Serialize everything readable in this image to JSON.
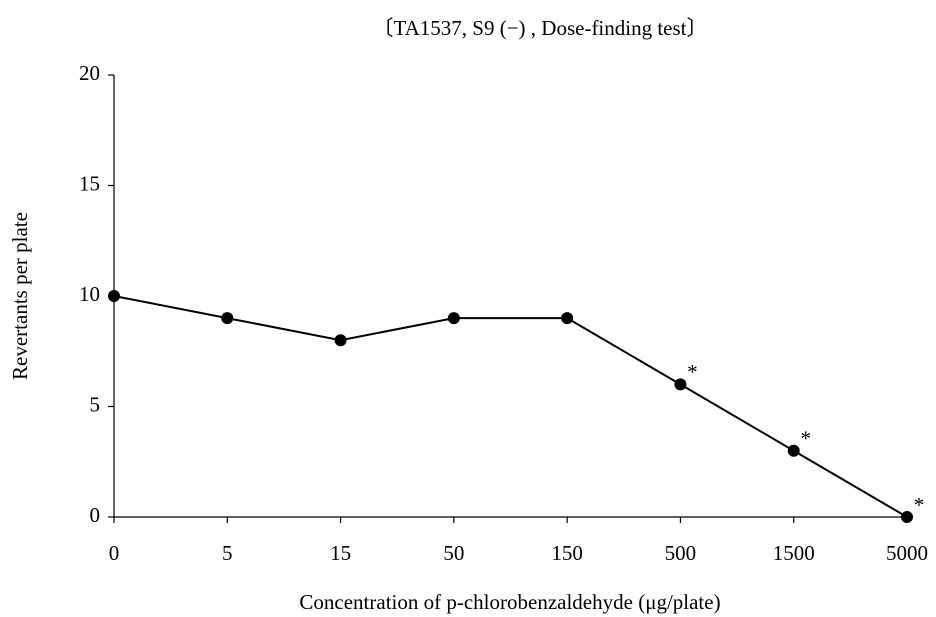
{
  "chart_data": {
    "type": "line",
    "title": "〔TA1537, S9 (−) , Dose-finding test〕",
    "x_label": "Concentration of p-chlorobenzaldehyde (μg/plate)",
    "y_label": "Revertants per plate",
    "categories": [
      "0",
      "5",
      "15",
      "50",
      "150",
      "500",
      "1500",
      "5000"
    ],
    "values": [
      10,
      9,
      8,
      9,
      9,
      6,
      3,
      0
    ],
    "annotations": [
      null,
      null,
      null,
      null,
      null,
      "*",
      "*",
      "*"
    ],
    "color": "#000000",
    "ylim": [
      0,
      20
    ],
    "yticks": [
      0,
      5,
      10,
      15,
      20
    ],
    "grid": false
  }
}
